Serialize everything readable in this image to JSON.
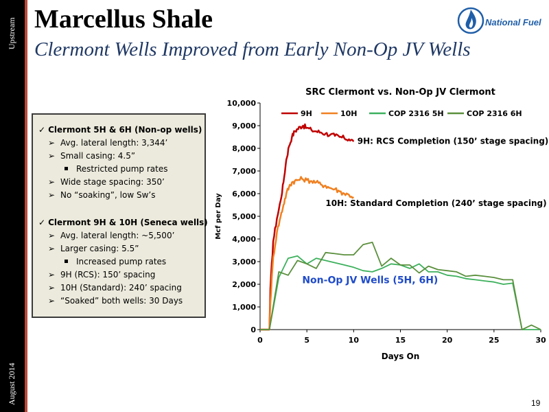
{
  "sidebar": {
    "top_label": "Upstream",
    "bottom_label": "August 2014"
  },
  "header": {
    "title": "Marcellus Shale",
    "subtitle": "Clermont Wells Improved from Early Non-Op JV Wells"
  },
  "logo": {
    "text": "National Fuel",
    "icon": "flame-icon"
  },
  "page_number": "19",
  "bullets": [
    {
      "heading": "Clermont 5H & 6H (Non-op wells)",
      "items": [
        {
          "text": "Avg. lateral length: 3,344’",
          "level": 1
        },
        {
          "text": "Small casing: 4.5”",
          "level": 1
        },
        {
          "text": "Restricted pump rates",
          "level": 2
        },
        {
          "text": "Wide stage spacing: 350’",
          "level": 1
        },
        {
          "text": "No “soaking”, low Sw’s",
          "level": 1
        }
      ]
    },
    {
      "heading": "Clermont 9H & 10H (Seneca wells)",
      "items": [
        {
          "text": "Avg. lateral length: ~5,500’",
          "level": 1
        },
        {
          "text": "Larger casing: 5.5”",
          "level": 1
        },
        {
          "text": "Increased pump rates",
          "level": 2
        },
        {
          "text": "9H (RCS): 150’ spacing",
          "level": 1
        },
        {
          "text": "10H (Standard): 240’ spacing",
          "level": 1
        },
        {
          "text": "“Soaked” both wells: 30 Days",
          "level": 1
        }
      ]
    }
  ],
  "chart_data": {
    "type": "line",
    "title": "SRC Clermont vs. Non-Op JV Clermont",
    "xlabel": "Days On",
    "ylabel": "Mcf per Day",
    "xlim": [
      0,
      30
    ],
    "ylim": [
      0,
      10000
    ],
    "xticks": [
      0,
      5,
      10,
      15,
      20,
      25,
      30
    ],
    "yticks": [
      0,
      1000,
      2000,
      3000,
      4000,
      5000,
      6000,
      7000,
      8000,
      9000,
      10000
    ],
    "ytick_labels": [
      "0",
      "1,000",
      "2,000",
      "3,000",
      "4,000",
      "5,000",
      "6,000",
      "7,000",
      "8,000",
      "9,000",
      "10,000"
    ],
    "grid": false,
    "legend_position": "top",
    "series": [
      {
        "name": "9H",
        "color": "#c00000",
        "x": [
          0,
          1,
          1.1,
          1.4,
          1.8,
          2.2,
          2.5,
          2.8,
          3.1,
          3.4,
          3.7,
          4,
          4.3,
          4.6,
          5,
          5.5,
          6,
          6.5,
          7,
          7.5,
          8,
          8.5,
          9,
          9.5,
          10
        ],
        "y": [
          0,
          0,
          1800,
          3900,
          4900,
          5700,
          6500,
          7500,
          8100,
          8500,
          8750,
          8850,
          8950,
          9000,
          8900,
          8800,
          8750,
          8700,
          8650,
          8600,
          8550,
          8500,
          8450,
          8400,
          8300
        ]
      },
      {
        "name": "10H",
        "color": "#f08020",
        "x": [
          0,
          1,
          1.1,
          1.4,
          1.8,
          2.2,
          2.5,
          2.8,
          3.1,
          3.4,
          3.7,
          4,
          4.5,
          5,
          5.5,
          6,
          6.5,
          7,
          7.5,
          8,
          8.5,
          9,
          9.5,
          10
        ],
        "y": [
          0,
          0,
          1200,
          3200,
          4300,
          5000,
          5500,
          6000,
          6300,
          6500,
          6550,
          6600,
          6650,
          6600,
          6550,
          6500,
          6400,
          6350,
          6250,
          6200,
          6100,
          6000,
          5950,
          5850
        ]
      },
      {
        "name": "COP 2316 5H",
        "color": "#3cb05c",
        "x": [
          0,
          1,
          2,
          3,
          4,
          5,
          6,
          7,
          8,
          9,
          10,
          11,
          12,
          13,
          14,
          15,
          16,
          17,
          18,
          19,
          20,
          21,
          22,
          23,
          24,
          25,
          26,
          27,
          28,
          29,
          30
        ],
        "y": [
          0,
          0,
          2300,
          3150,
          3250,
          2900,
          3150,
          3050,
          2950,
          2850,
          2750,
          2600,
          2550,
          2700,
          2900,
          2850,
          2700,
          2900,
          2550,
          2550,
          2400,
          2350,
          2250,
          2200,
          2150,
          2100,
          2000,
          2050,
          0,
          0,
          0
        ]
      },
      {
        "name": "COP 2316 6H",
        "color": "#5a8f3c",
        "x": [
          0,
          1,
          2,
          3,
          4,
          5,
          6,
          7,
          8,
          9,
          10,
          11,
          12,
          13,
          14,
          15,
          16,
          17,
          18,
          19,
          20,
          21,
          22,
          23,
          24,
          25,
          26,
          27,
          28,
          29,
          30
        ],
        "y": [
          0,
          0,
          2550,
          2400,
          3050,
          2900,
          2700,
          3400,
          3350,
          3300,
          3300,
          3750,
          3850,
          2800,
          3150,
          2850,
          2850,
          2500,
          2800,
          2650,
          2600,
          2550,
          2350,
          2400,
          2350,
          2300,
          2200,
          2200,
          0,
          200,
          0
        ]
      }
    ],
    "annotations": [
      {
        "text": "9H:  RCS Completion (150’ stage spacing)",
        "x": 10.4,
        "y": 8200,
        "color": "#000000",
        "size": 12
      },
      {
        "text": "10H:  Standard Completion (240’ stage spacing)",
        "x": 7.0,
        "y": 5450,
        "color": "#000000",
        "size": 12
      },
      {
        "text": "Non-Op JV Wells (5H, 6H)",
        "x": 4.5,
        "y": 2050,
        "color": "#1f4bc8",
        "size": 14
      }
    ]
  }
}
